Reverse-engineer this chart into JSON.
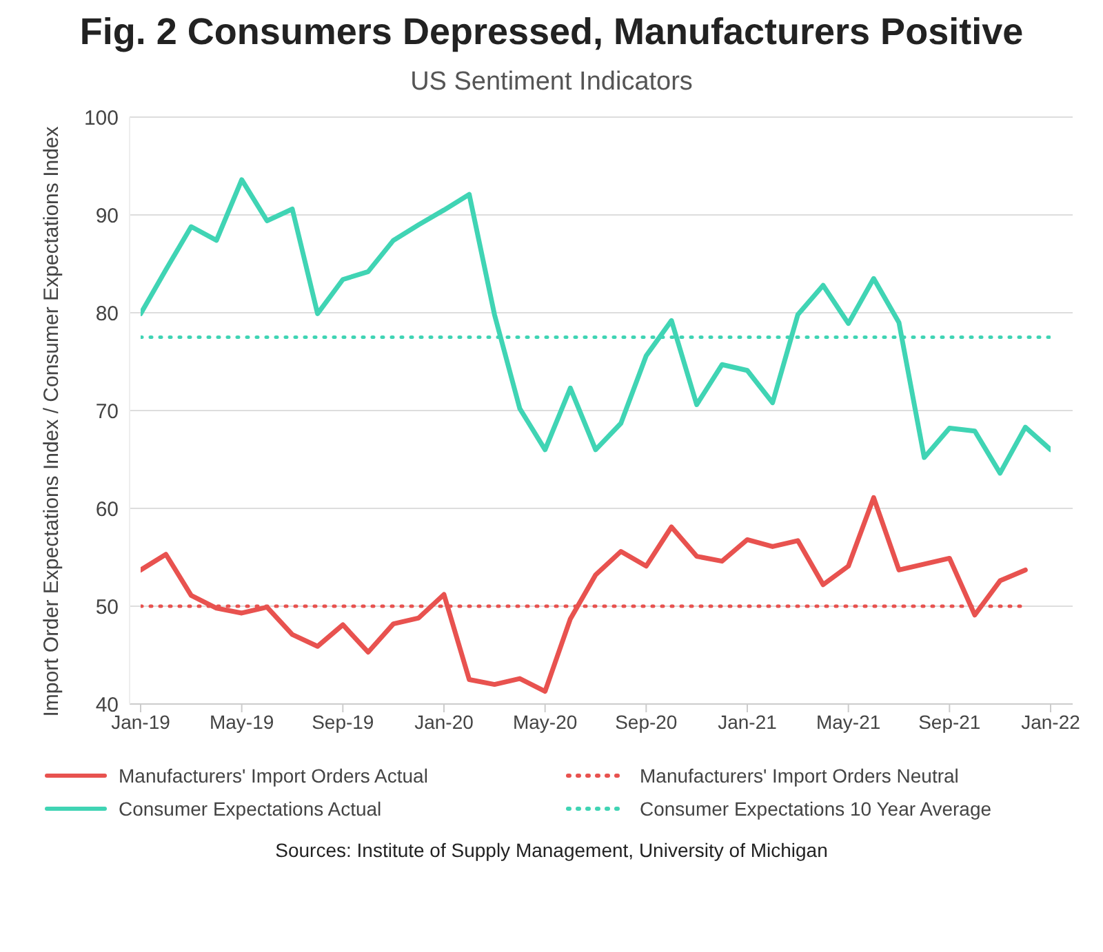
{
  "chart_data": {
    "type": "line",
    "title": "Fig. 2 Consumers Depressed, Manufacturers Positive",
    "subtitle": "US Sentiment Indicators",
    "ylabel": "Import Order Expectations Index / Consumer Expectations Index",
    "categories": [
      "Jan-19",
      null,
      null,
      null,
      "May-19",
      null,
      null,
      null,
      "Sep-19",
      null,
      null,
      null,
      "Jan-20",
      null,
      null,
      null,
      "May-20",
      null,
      null,
      null,
      "Sep-20",
      null,
      null,
      null,
      "Jan-21",
      null,
      null,
      null,
      "May-21",
      null,
      null,
      null,
      "Sep-21",
      null,
      null,
      null,
      "Jan-22"
    ],
    "series": [
      {
        "name": "Manufacturers' Import Orders Actual",
        "color": "#e8524f",
        "line_style": "solid",
        "values": [
          53.7,
          55.3,
          51.1,
          49.8,
          49.3,
          49.9,
          47.1,
          45.9,
          48.1,
          45.3,
          48.2,
          48.8,
          51.2,
          42.5,
          42.0,
          42.6,
          41.3,
          48.7,
          53.2,
          55.6,
          54.1,
          58.1,
          55.1,
          54.6,
          56.8,
          56.1,
          56.7,
          52.2,
          54.1,
          61.1,
          53.7,
          54.3,
          54.9,
          49.1,
          52.6,
          53.7,
          null
        ]
      },
      {
        "name": "Manufacturers' Import Orders Neutral",
        "color": "#e8524f",
        "line_style": "dotted",
        "values": [
          50,
          50,
          50,
          50,
          50,
          50,
          50,
          50,
          50,
          50,
          50,
          50,
          50,
          50,
          50,
          50,
          50,
          50,
          50,
          50,
          50,
          50,
          50,
          50,
          50,
          50,
          50,
          50,
          50,
          50,
          50,
          50,
          50,
          50,
          50,
          50,
          null
        ]
      },
      {
        "name": "Consumer Expectations Actual",
        "color": "#40d4b4",
        "line_style": "solid",
        "values": [
          79.9,
          84.4,
          88.8,
          87.4,
          93.6,
          89.4,
          90.6,
          79.9,
          83.4,
          84.2,
          87.4,
          89.0,
          90.5,
          92.1,
          79.8,
          70.2,
          66.0,
          72.3,
          66.0,
          68.7,
          75.6,
          79.2,
          70.6,
          74.7,
          74.1,
          70.8,
          79.8,
          82.8,
          78.9,
          83.5,
          79.0,
          65.2,
          68.2,
          67.9,
          63.6,
          68.3,
          66.0
        ]
      },
      {
        "name": "Consumer Expectations 10 Year Average",
        "color": "#40d4b4",
        "line_style": "dotted",
        "values": [
          77.5,
          77.5,
          77.5,
          77.5,
          77.5,
          77.5,
          77.5,
          77.5,
          77.5,
          77.5,
          77.5,
          77.5,
          77.5,
          77.5,
          77.5,
          77.5,
          77.5,
          77.5,
          77.5,
          77.5,
          77.5,
          77.5,
          77.5,
          77.5,
          77.5,
          77.5,
          77.5,
          77.5,
          77.5,
          77.5,
          77.5,
          77.5,
          77.5,
          77.5,
          77.5,
          77.5,
          77.5
        ]
      }
    ],
    "ylim": [
      40,
      100
    ],
    "yticks": [
      40,
      50,
      60,
      70,
      80,
      90,
      100
    ],
    "grid": "y",
    "legend": "bottom",
    "marker": "none",
    "annotations": [
      "Sources: Institute of Supply Management, University of Michigan"
    ]
  }
}
